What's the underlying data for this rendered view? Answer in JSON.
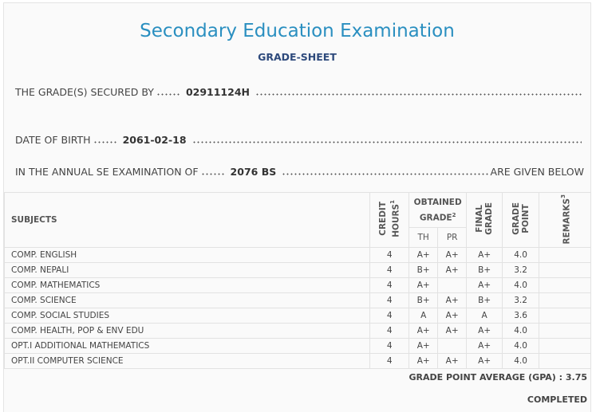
{
  "header": {
    "title": "Secondary Education Examination",
    "subtitle": "GRADE-SHEET"
  },
  "details": {
    "secured_by_label": "THE GRADE(S) SECURED BY",
    "symbol_no": "02911124H",
    "dob_label": "DATE OF BIRTH",
    "dob": "2061-02-18",
    "exam_label": "IN THE ANNUAL SE EXAMINATION OF",
    "exam_year": "2076 BS",
    "exam_suffix": "ARE GIVEN BELOW"
  },
  "table": {
    "headers": {
      "subjects": "SUBJECTS",
      "credit": [
        "CREDIT",
        "HOURS"
      ],
      "credit_note": "1",
      "obtained": [
        "OBTAINED",
        "GRADE"
      ],
      "obtained_note": "2",
      "th": "TH",
      "pr": "PR",
      "final": [
        "FINAL",
        "GRADE"
      ],
      "point": [
        "GRADE",
        "POINT"
      ],
      "remarks": "REMARKS",
      "remarks_note": "3"
    },
    "rows": [
      [
        "COMP. ENGLISH",
        "4",
        "A+",
        "A+",
        "A+",
        "4.0"
      ],
      [
        "COMP. NEPALI",
        "4",
        "B+",
        "A+",
        "B+",
        "3.2"
      ],
      [
        "COMP. MATHEMATICS",
        "4",
        "A+",
        null,
        "A+",
        "4.0"
      ],
      [
        "COMP. SCIENCE",
        "4",
        "B+",
        "A+",
        "B+",
        "3.2"
      ],
      [
        "COMP. SOCIAL STUDIES",
        "4",
        "A",
        "A+",
        "A",
        "3.6"
      ],
      [
        "COMP. HEALTH, POP & ENV EDU",
        "4",
        "A+",
        "A+",
        "A+",
        "4.0"
      ],
      [
        "OPT.I ADDITIONAL MATHEMATICS",
        "4",
        "A+",
        null,
        "A+",
        "4.0"
      ],
      [
        "OPT.II COMPUTER SCIENCE",
        "4",
        "A+",
        "A+",
        "A+",
        "4.0"
      ]
    ]
  },
  "footer": {
    "gpa_label": "GRADE POINT AVERAGE (GPA) :",
    "gpa": "3.75",
    "status": "COMPLETED"
  }
}
